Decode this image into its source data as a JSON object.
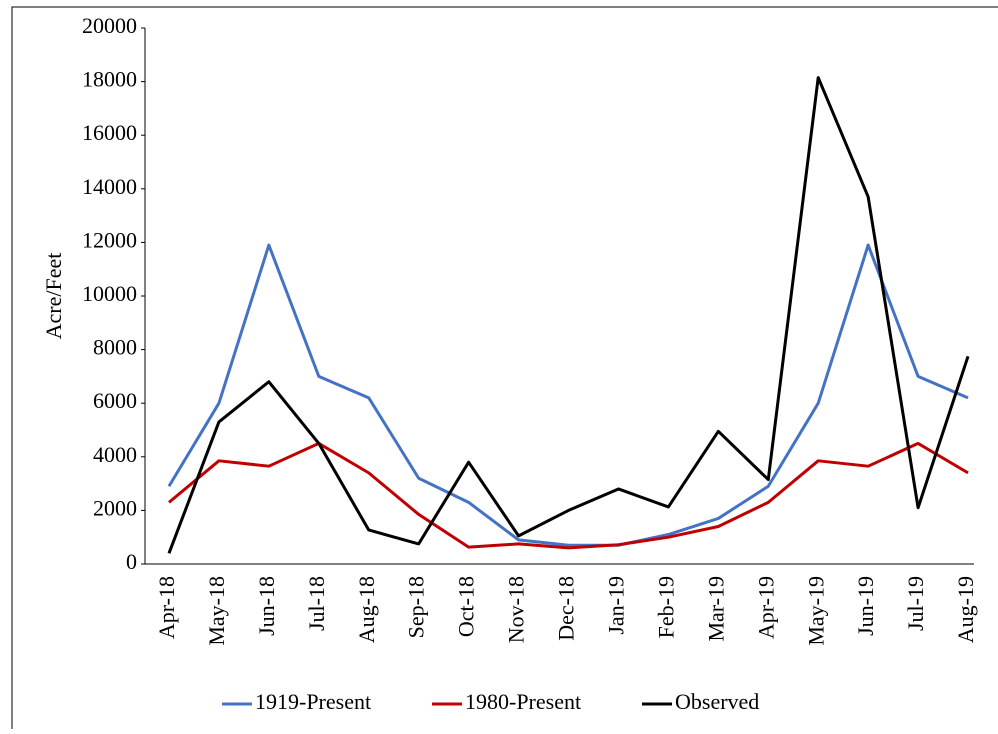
{
  "chart_data": {
    "type": "line",
    "y_label": "Acre/Feet",
    "categories": [
      "Apr-18",
      "May-18",
      "Jun-18",
      "Jul-18",
      "Aug-18",
      "Sep-18",
      "Oct-18",
      "Nov-18",
      "Dec-18",
      "Jan-19",
      "Feb-19",
      "Mar-19",
      "Apr-19",
      "May-19",
      "Jun-19",
      "Jul-19",
      "Aug-19"
    ],
    "series": [
      {
        "name": "1919-Present",
        "color": "#4472c4",
        "values": [
          2900,
          6000,
          11900,
          7000,
          6200,
          3200,
          2300,
          900,
          700,
          700,
          1100,
          1700,
          2900,
          6000,
          11900,
          7000,
          6200
        ]
      },
      {
        "name": "1980-Present",
        "color": "#c00000",
        "values": [
          2300,
          3850,
          3650,
          4500,
          3400,
          1850,
          630,
          750,
          600,
          720,
          1000,
          1400,
          2300,
          3850,
          3650,
          4500,
          3400
        ]
      },
      {
        "name": "Observed",
        "color": "#000000",
        "values": [
          400,
          5300,
          6800,
          4500,
          1270,
          750,
          3800,
          1050,
          2000,
          2800,
          2130,
          4950,
          3150,
          18150,
          13700,
          2100,
          7750
        ]
      }
    ],
    "ylim": [
      0,
      20000
    ],
    "yticks": [
      0,
      2000,
      4000,
      6000,
      8000,
      10000,
      12000,
      14000,
      16000,
      18000,
      20000
    ],
    "grid": false,
    "legend": "bottom"
  }
}
